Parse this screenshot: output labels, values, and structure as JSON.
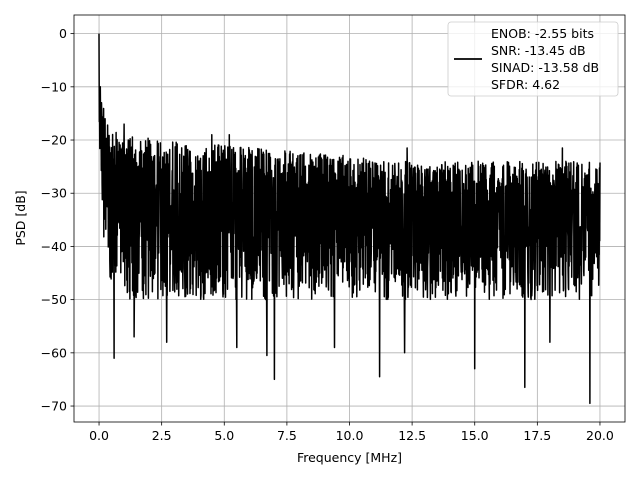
{
  "chart_data": {
    "type": "line",
    "title": "",
    "xlabel": "Frequency [MHz]",
    "ylabel": "PSD [dB]",
    "xlim": [
      -1.0,
      21.0
    ],
    "ylim": [
      -73,
      3.5
    ],
    "xticks": [
      0.0,
      2.5,
      5.0,
      7.5,
      10.0,
      12.5,
      15.0,
      17.5,
      20.0
    ],
    "xtick_labels": [
      "0.0",
      "2.5",
      "5.0",
      "7.5",
      "10.0",
      "12.5",
      "15.0",
      "17.5",
      "20.0"
    ],
    "yticks": [
      0,
      -10,
      -20,
      -30,
      -40,
      -50,
      -60,
      -70
    ],
    "ytick_labels": [
      "0",
      "−10",
      "−20",
      "−30",
      "−40",
      "−50",
      "−60",
      "−70"
    ],
    "grid": true,
    "legend_placement": "top-right",
    "legend": [
      "ENOB: -2.55 bits",
      "SNR: -13.45 dB",
      "SINAD: -13.58 dB",
      "SFDR: 4.62"
    ],
    "series": [
      {
        "name": "PSD",
        "color": "#000000",
        "peak": {
          "x": 0.0,
          "y": 0.0
        },
        "upper_envelope": {
          "x": [
            0,
            0.3,
            1,
            2.5,
            5,
            7.5,
            10,
            12.5,
            15,
            17.5,
            20
          ],
          "y": [
            -8,
            -17,
            -19,
            -20,
            -21,
            -22,
            -23,
            -24,
            -24,
            -24,
            -24
          ]
        },
        "lower_envelope": {
          "x": [
            0,
            0.3,
            1,
            2.5,
            5,
            7.5,
            10,
            12.5,
            15,
            17.5,
            20
          ],
          "y": [
            -30,
            -45,
            -50,
            -50,
            -50,
            -50,
            -50,
            -50,
            -50,
            -50,
            -50
          ]
        },
        "notable_dips": {
          "x": [
            0.6,
            1.4,
            2.7,
            5.5,
            6.7,
            7.0,
            9.4,
            11.2,
            12.2,
            15.0,
            17.0,
            18.0,
            19.6
          ],
          "y": [
            -61,
            -57,
            -58,
            -59,
            -60.5,
            -65,
            -59,
            -64.5,
            -60,
            -63,
            -66.5,
            -58,
            -69.5
          ]
        },
        "notable_peaks": {
          "x": [
            0.05,
            0.1,
            1.0,
            4.5,
            5.2,
            12.3,
            18.5
          ],
          "y": [
            -10,
            -13,
            -17,
            -19,
            -19,
            -21.5,
            -21.5
          ]
        }
      }
    ]
  }
}
